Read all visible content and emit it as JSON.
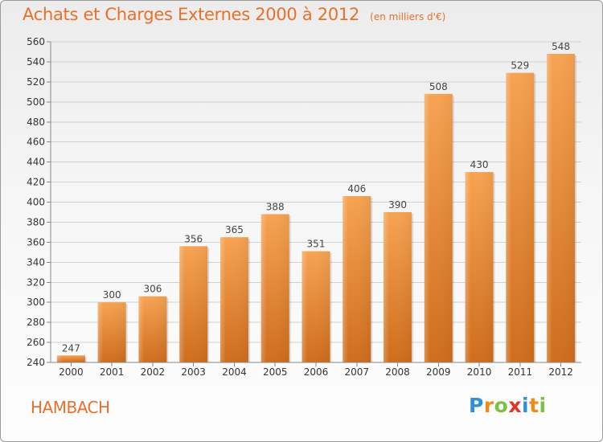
{
  "title": "Achats et Charges Externes 2000 à 2012",
  "subtitle": "(en milliers d'€)",
  "commune": "HAMBACH",
  "logo": {
    "letters": [
      "P",
      "r",
      "o",
      "x",
      "i",
      "t",
      "i"
    ],
    "colors": [
      "#2f8fd8",
      "#f08a1c",
      "#7cc242",
      "#e2332d",
      "#2f8fd8",
      "#f08a1c",
      "#7cc242"
    ]
  },
  "colors": {
    "accent": "#e8702a",
    "bar_light": "#f7a352",
    "bar_dark": "#cf6d1c",
    "grid": "#d0d0d0"
  },
  "chart_data": {
    "type": "bar",
    "title": "Achats et Charges Externes 2000 à 2012",
    "subtitle": "(en milliers d'€)",
    "categories": [
      "2000",
      "2001",
      "2002",
      "2003",
      "2004",
      "2005",
      "2006",
      "2007",
      "2008",
      "2009",
      "2010",
      "2011",
      "2012"
    ],
    "values": [
      247,
      300,
      306,
      356,
      365,
      388,
      351,
      406,
      390,
      508,
      430,
      529,
      548
    ],
    "ylim": [
      240,
      560
    ],
    "yticks": [
      240,
      260,
      280,
      300,
      320,
      340,
      360,
      380,
      400,
      420,
      440,
      460,
      480,
      500,
      520,
      540,
      560
    ],
    "grid": true
  }
}
